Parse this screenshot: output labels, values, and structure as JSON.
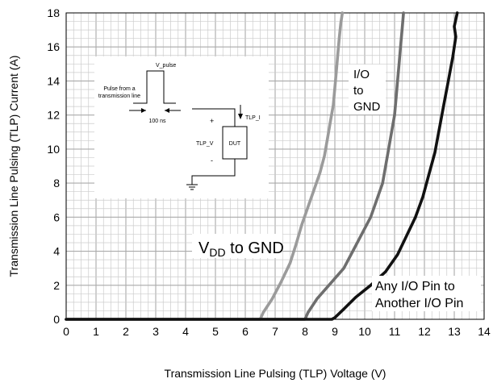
{
  "chart_data": {
    "type": "line",
    "xlabel": "Transmission Line Pulsing (TLP) Voltage (V)",
    "ylabel": "Transmission Line Pulsing (TLP) Current (A)",
    "xlim": [
      0,
      14
    ],
    "ylim": [
      0,
      18
    ],
    "x_ticks": [
      "0",
      "1",
      "2",
      "3",
      "4",
      "5",
      "6",
      "7",
      "8",
      "9",
      "10",
      "11",
      "12",
      "13",
      "14"
    ],
    "y_ticks": [
      "0",
      "2",
      "4",
      "6",
      "8",
      "10",
      "12",
      "14",
      "16",
      "18"
    ],
    "grid": true,
    "series": [
      {
        "color": "#9b9b9b",
        "points": [
          [
            0,
            0
          ],
          [
            6.5,
            0
          ],
          [
            6.6,
            0.4
          ],
          [
            6.9,
            1.2
          ],
          [
            7.2,
            2.2
          ],
          [
            7.5,
            3.3
          ],
          [
            7.7,
            4.4
          ],
          [
            7.9,
            5.6
          ],
          [
            8.1,
            6.6
          ],
          [
            8.3,
            7.6
          ],
          [
            8.5,
            8.6
          ],
          [
            8.65,
            9.6
          ],
          [
            8.75,
            10.6
          ],
          [
            8.85,
            11.6
          ],
          [
            8.95,
            12.6
          ],
          [
            9.0,
            13.6
          ],
          [
            9.05,
            14.6
          ],
          [
            9.1,
            15.6
          ],
          [
            9.15,
            16.6
          ],
          [
            9.2,
            17.4
          ],
          [
            9.25,
            18
          ]
        ]
      },
      {
        "color": "#6e6e6e",
        "points": [
          [
            0,
            0
          ],
          [
            8.0,
            0
          ],
          [
            8.1,
            0.4
          ],
          [
            8.4,
            1.2
          ],
          [
            8.8,
            2.0
          ],
          [
            9.3,
            3.0
          ],
          [
            9.6,
            4.0
          ],
          [
            9.9,
            5.0
          ],
          [
            10.2,
            6.0
          ],
          [
            10.4,
            7.0
          ],
          [
            10.6,
            8.0
          ],
          [
            10.7,
            9.0
          ],
          [
            10.8,
            10.0
          ],
          [
            10.9,
            11.0
          ],
          [
            11.0,
            12.0
          ],
          [
            11.05,
            13.0
          ],
          [
            11.1,
            14.0
          ],
          [
            11.15,
            15.0
          ],
          [
            11.2,
            16.0
          ],
          [
            11.25,
            17.0
          ],
          [
            11.3,
            18
          ]
        ]
      },
      {
        "color": "#111111",
        "points": [
          [
            0,
            0
          ],
          [
            8.9,
            0
          ],
          [
            9.0,
            0.1
          ],
          [
            9.3,
            0.6
          ],
          [
            9.7,
            1.3
          ],
          [
            10.2,
            2.0
          ],
          [
            10.7,
            2.8
          ],
          [
            11.1,
            3.8
          ],
          [
            11.4,
            4.9
          ],
          [
            11.7,
            6.0
          ],
          [
            11.95,
            7.2
          ],
          [
            12.15,
            8.5
          ],
          [
            12.35,
            9.8
          ],
          [
            12.5,
            11.2
          ],
          [
            12.65,
            12.6
          ],
          [
            12.8,
            14.0
          ],
          [
            12.95,
            15.4
          ],
          [
            13.05,
            16.6
          ],
          [
            13.0,
            17.2
          ],
          [
            13.1,
            18
          ]
        ]
      }
    ],
    "annotations": {
      "vdd": {
        "main": "V",
        "sub": "DD",
        "rest": " to GND"
      },
      "io_gnd": [
        "I/O",
        "to",
        "GND"
      ],
      "any_io": [
        "Any I/O Pin to",
        "Another I/O Pin"
      ]
    },
    "inset": {
      "v_pulse": "V_pulse",
      "pulse_from": [
        "Pulse from a",
        "transmission line"
      ],
      "ns": "100 ns",
      "tlp_i": "TLP_I",
      "tlp_v": "TLP_V",
      "dut": "DUT",
      "plus": "+",
      "minus": "-"
    }
  }
}
